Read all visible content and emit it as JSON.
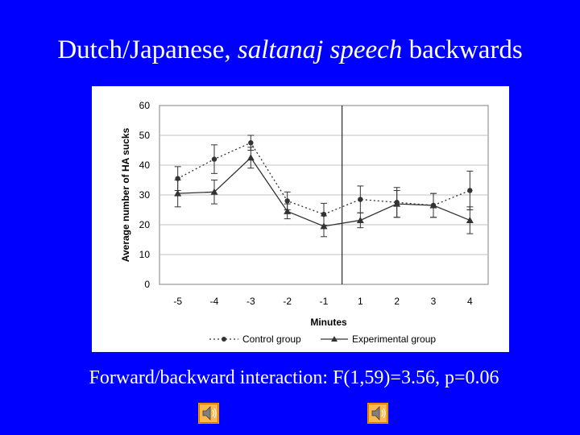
{
  "slide": {
    "title_pre": "Dutch/Japanese, ",
    "title_italic": "saltanaj speech",
    "title_post": " backwards",
    "caption": "Forward/backward interaction: F(1,59)=3.56, p=0.06"
  },
  "icons": [
    {
      "name": "sound-icon",
      "accent": "#ff9900"
    },
    {
      "name": "sound-icon",
      "accent": "#ff9900"
    }
  ],
  "chart_data": {
    "type": "line",
    "x": [
      -5,
      -4,
      -3,
      -2,
      -1,
      1,
      2,
      3,
      4
    ],
    "xlabel": "Minutes",
    "ylabel": "Average number of HA sucks",
    "ylim": [
      0,
      60
    ],
    "yticks": [
      0,
      10,
      20,
      30,
      40,
      50,
      60
    ],
    "grid": true,
    "divider_between": [
      -1,
      1
    ],
    "legend_position": "bottom",
    "series": [
      {
        "name": "Control group",
        "style": "dotted",
        "marker": "circle",
        "values": [
          35.5,
          42,
          47.5,
          28,
          23.5,
          28.5,
          27.5,
          26.5,
          31.5
        ],
        "error": [
          4,
          4.8,
          2.5,
          3,
          3.7,
          4.5,
          5,
          4,
          6.5
        ]
      },
      {
        "name": "Experimental group",
        "style": "solid",
        "marker": "triangle",
        "values": [
          30.5,
          31,
          42.5,
          24.5,
          19.5,
          21.5,
          27,
          26.5,
          21.5
        ],
        "error": [
          4.5,
          4,
          3.5,
          2.5,
          3.5,
          2.5,
          4.5,
          4,
          4.5
        ]
      }
    ]
  }
}
